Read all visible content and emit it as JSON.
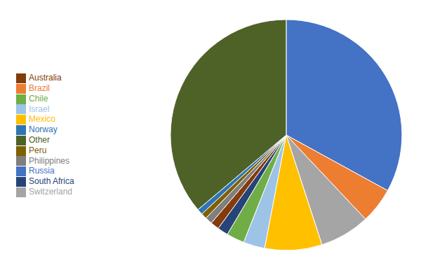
{
  "chart_data": {
    "type": "pie",
    "categories": [
      "Russia",
      "Brazil",
      "Switzerland",
      "Mexico",
      "Israel",
      "Chile",
      "South Africa",
      "Australia",
      "Philippines",
      "Peru",
      "Norway",
      "Other"
    ],
    "values": [
      33,
      5,
      7,
      8,
      3,
      2.5,
      1.5,
      1.2,
      1.0,
      0.8,
      0.8,
      36.2
    ],
    "colors": [
      "#4472C4",
      "#ED7D31",
      "#A5A5A5",
      "#FFC000",
      "#9DC3E6",
      "#70AD47",
      "#264478",
      "#843C0C",
      "#7F7F7F",
      "#7F6000",
      "#2E75B6",
      "#4E6228"
    ],
    "legend": "left"
  }
}
